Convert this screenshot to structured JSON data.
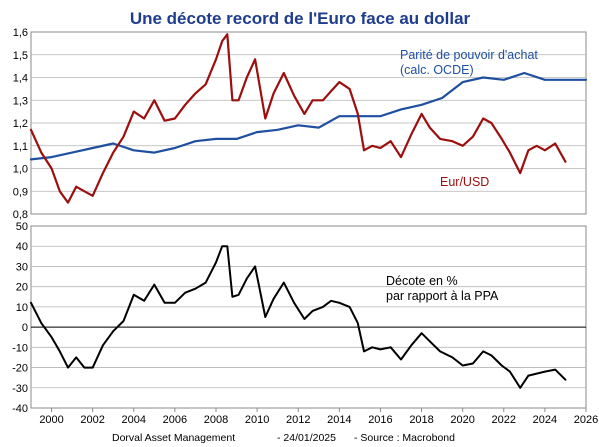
{
  "title": "Une décote record de l'Euro face au dollar",
  "footer": {
    "source_org": "Dorval Asset Management",
    "date": "- 24/01/2025",
    "source": "- Source : Macrobond"
  },
  "colors": {
    "eurusd": "#9c0f0f",
    "ppa": "#1f4fa0",
    "decote": "#000000",
    "title": "#1f3d8f",
    "frame": "#8a8a8a"
  },
  "chart_data": [
    {
      "type": "line",
      "panel": "top",
      "ylim": [
        0.8,
        1.6
      ],
      "yticks": [
        "0,8",
        "0,9",
        "1,0",
        "1,1",
        "1,2",
        "1,3",
        "1,4",
        "1,5",
        "1,6"
      ],
      "yticks_values": [
        0.8,
        0.9,
        1.0,
        1.1,
        1.2,
        1.3,
        1.4,
        1.5,
        1.6
      ],
      "grid": "horizontal",
      "annotations": {
        "ppa": "Parité de pouvoir d'achat\n(calc. OCDE)",
        "eurusd": "Eur/USD"
      },
      "series": [
        {
          "name": "Parité de pouvoir d'achat (calc. OCDE)",
          "color": "#1f4fa0",
          "x": [
            1999.0,
            2000.0,
            2001.0,
            2002.0,
            2003.0,
            2004.0,
            2005.0,
            2006.0,
            2007.0,
            2008.0,
            2009.0,
            2010.0,
            2011.0,
            2012.0,
            2013.0,
            2014.0,
            2015.0,
            2016.0,
            2017.0,
            2018.0,
            2019.0,
            2020.0,
            2021.0,
            2022.0,
            2023.0,
            2024.0,
            2025.0,
            2026.0
          ],
          "y": [
            1.04,
            1.05,
            1.07,
            1.09,
            1.11,
            1.08,
            1.07,
            1.09,
            1.12,
            1.13,
            1.13,
            1.16,
            1.17,
            1.19,
            1.18,
            1.23,
            1.23,
            1.23,
            1.26,
            1.28,
            1.31,
            1.38,
            1.4,
            1.39,
            1.42,
            1.39,
            1.39,
            1.39
          ]
        },
        {
          "name": "Eur/USD",
          "color": "#9c0f0f",
          "x": [
            1999.0,
            1999.5,
            2000.0,
            2000.4,
            2000.8,
            2001.2,
            2001.6,
            2002.0,
            2002.5,
            2003.0,
            2003.5,
            2004.0,
            2004.5,
            2005.0,
            2005.5,
            2006.0,
            2006.5,
            2007.0,
            2007.5,
            2008.0,
            2008.3,
            2008.55,
            2008.8,
            2009.1,
            2009.5,
            2009.9,
            2010.4,
            2010.8,
            2011.3,
            2011.8,
            2012.3,
            2012.7,
            2013.2,
            2013.6,
            2014.0,
            2014.5,
            2014.9,
            2015.2,
            2015.6,
            2016.0,
            2016.5,
            2017.0,
            2017.5,
            2018.0,
            2018.4,
            2018.9,
            2019.5,
            2020.0,
            2020.5,
            2021.0,
            2021.4,
            2021.9,
            2022.3,
            2022.8,
            2023.2,
            2023.6,
            2024.0,
            2024.5,
            2025.0
          ],
          "y": [
            1.17,
            1.07,
            1.0,
            0.9,
            0.85,
            0.92,
            0.9,
            0.88,
            0.98,
            1.07,
            1.14,
            1.25,
            1.22,
            1.3,
            1.21,
            1.22,
            1.28,
            1.33,
            1.37,
            1.48,
            1.56,
            1.59,
            1.3,
            1.3,
            1.4,
            1.48,
            1.22,
            1.33,
            1.42,
            1.32,
            1.24,
            1.3,
            1.3,
            1.34,
            1.38,
            1.35,
            1.24,
            1.08,
            1.1,
            1.09,
            1.12,
            1.05,
            1.15,
            1.24,
            1.18,
            1.13,
            1.12,
            1.1,
            1.14,
            1.22,
            1.2,
            1.13,
            1.07,
            0.98,
            1.08,
            1.1,
            1.08,
            1.11,
            1.03
          ]
        }
      ]
    },
    {
      "type": "line",
      "panel": "bottom",
      "ylim": [
        -40,
        50
      ],
      "yticks": [
        "-40",
        "-30",
        "-20",
        "-10",
        "0",
        "10",
        "20",
        "30",
        "40",
        "50"
      ],
      "yticks_values": [
        -40,
        -30,
        -20,
        -10,
        0,
        10,
        20,
        30,
        40,
        50
      ],
      "xlim": [
        1999,
        2026
      ],
      "xticks": [
        "2000",
        "2002",
        "2004",
        "2006",
        "2008",
        "2010",
        "2012",
        "2014",
        "2016",
        "2018",
        "2020",
        "2022",
        "2024",
        "2026"
      ],
      "xticks_values": [
        2000,
        2002,
        2004,
        2006,
        2008,
        2010,
        2012,
        2014,
        2016,
        2018,
        2020,
        2022,
        2024,
        2026
      ],
      "grid": "horizontal",
      "annotations": {
        "decote": "Décote en %\npar rapport à la PPA"
      },
      "series": [
        {
          "name": "Décote en % par rapport à la PPA",
          "color": "#000000",
          "x": [
            1999.0,
            1999.5,
            2000.0,
            2000.4,
            2000.8,
            2001.2,
            2001.6,
            2002.0,
            2002.5,
            2003.0,
            2003.5,
            2004.0,
            2004.5,
            2005.0,
            2005.5,
            2006.0,
            2006.5,
            2007.0,
            2007.5,
            2008.0,
            2008.3,
            2008.55,
            2008.8,
            2009.1,
            2009.5,
            2009.9,
            2010.4,
            2010.8,
            2011.3,
            2011.8,
            2012.3,
            2012.7,
            2013.2,
            2013.6,
            2014.0,
            2014.5,
            2014.9,
            2015.2,
            2015.6,
            2016.0,
            2016.5,
            2017.0,
            2017.5,
            2018.0,
            2018.4,
            2018.9,
            2019.5,
            2020.0,
            2020.5,
            2021.0,
            2021.4,
            2021.9,
            2022.3,
            2022.8,
            2023.2,
            2023.6,
            2024.0,
            2024.5,
            2025.0
          ],
          "y": [
            12,
            2,
            -5,
            -12,
            -20,
            -15,
            -20,
            -20,
            -9,
            -2,
            3,
            16,
            13,
            21,
            12,
            12,
            17,
            19,
            22,
            32,
            40,
            40,
            15,
            16,
            24,
            30,
            5,
            14,
            22,
            12,
            4,
            8,
            10,
            13,
            12,
            10,
            2,
            -12,
            -10,
            -11,
            -10,
            -16,
            -9,
            -3,
            -7,
            -12,
            -15,
            -19,
            -18,
            -12,
            -14,
            -19,
            -22,
            -30,
            -24,
            -23,
            -22,
            -21,
            -26
          ]
        }
      ]
    }
  ]
}
